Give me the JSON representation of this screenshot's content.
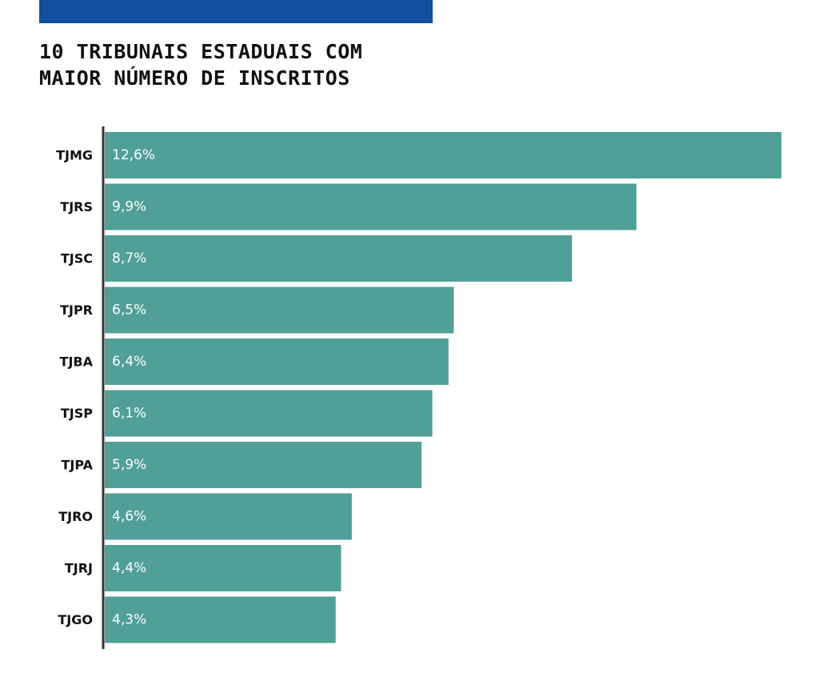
{
  "colors": {
    "accent_bar": "#124f9c",
    "bar": "#50a097",
    "axis": "#333333"
  },
  "chart_data": {
    "type": "bar",
    "orientation": "horizontal",
    "title": "10 TRIBUNAIS ESTADUAIS COM\nMAIOR NÚMERO DE INSCRITOS",
    "categories": [
      "TJMG",
      "TJRS",
      "TJSC",
      "TJPR",
      "TJBA",
      "TJSP",
      "TJPA",
      "TJRO",
      "TJRJ",
      "TJGO"
    ],
    "values": [
      12.6,
      9.9,
      8.7,
      6.5,
      6.4,
      6.1,
      5.9,
      4.6,
      4.4,
      4.3
    ],
    "value_labels": [
      "12,6%",
      "9,9%",
      "8,7%",
      "6,5%",
      "6,4%",
      "6,1%",
      "5,9%",
      "4,6%",
      "4,4%",
      "4,3%"
    ],
    "xlim": [
      0,
      12.6
    ],
    "grid": false,
    "legend": "none"
  }
}
